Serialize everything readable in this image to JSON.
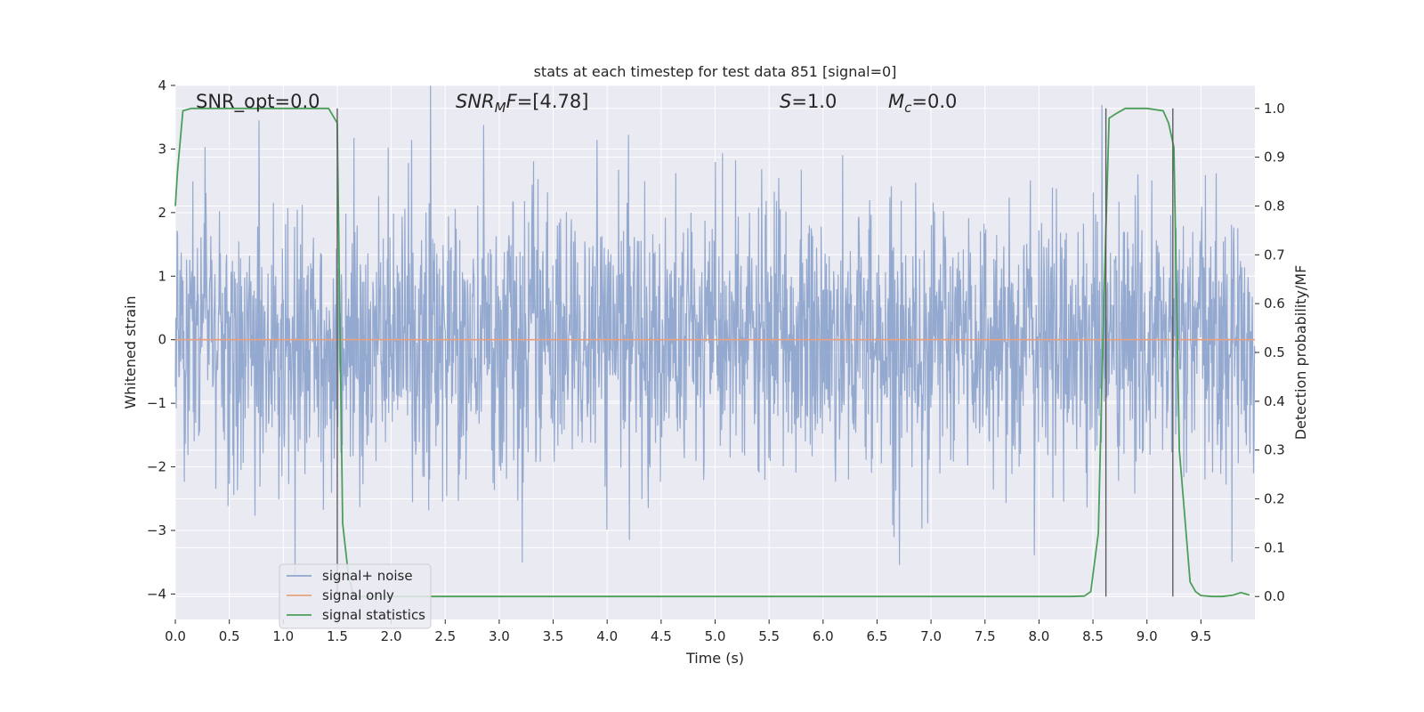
{
  "chart_data": {
    "type": "line",
    "title": "stats at each timestep for test data 851 [signal=0]",
    "xlabel": "Time (s)",
    "ylabel_left": "Whitened strain",
    "ylabel_right": "Detection probability/MF",
    "xlim": [
      0.0,
      10.0
    ],
    "ylim_left": [
      -4.4,
      4.0
    ],
    "ylim_right": [
      -0.047,
      1.047
    ],
    "x_ticks": [
      "0.0",
      "0.5",
      "1.0",
      "1.5",
      "2.0",
      "2.5",
      "3.0",
      "3.5",
      "4.0",
      "4.5",
      "5.0",
      "5.5",
      "6.0",
      "6.5",
      "7.0",
      "7.5",
      "8.0",
      "8.5",
      "9.0",
      "9.5"
    ],
    "y_ticks_left": [
      "−4",
      "−3",
      "−2",
      "−1",
      "0",
      "1",
      "2",
      "3",
      "4"
    ],
    "y_ticks_right": [
      "0.0",
      "0.1",
      "0.2",
      "0.3",
      "0.4",
      "0.5",
      "0.6",
      "0.7",
      "0.8",
      "0.9",
      "1.0"
    ],
    "grid": true,
    "legend_position": "lower-left",
    "annotations": {
      "snr_opt": "SNR_opt=0.0",
      "snr_mf_var": "SNR",
      "snr_mf_sub": "M",
      "snr_mf_var2": "F",
      "snr_mf_value": "=[4.78]",
      "s_var": "S",
      "s_value": "=1.0",
      "mc_var": "M",
      "mc_sub": "c",
      "mc_value": "=0.0"
    },
    "series": [
      {
        "name": "signal+ noise",
        "color": "#8fa5cc",
        "axis": "left",
        "description_values": "white noise, std approx 1.0 strain, sampled across 0–10 s"
      },
      {
        "name": "signal only",
        "color": "#e8a07f",
        "axis": "left",
        "x": [
          0.0,
          10.0
        ],
        "y": [
          0.0,
          0.0
        ]
      },
      {
        "name": "signal statistics",
        "color": "#4c9f5a",
        "axis": "right",
        "x": [
          0.0,
          0.02,
          0.07,
          0.15,
          0.5,
          1.0,
          1.42,
          1.5,
          1.55,
          1.6,
          1.65,
          2.0,
          3.0,
          4.0,
          5.0,
          6.0,
          7.0,
          8.0,
          8.3,
          8.42,
          8.48,
          8.55,
          8.6,
          8.65,
          8.72,
          8.8,
          8.9,
          9.0,
          9.15,
          9.2,
          9.25,
          9.3,
          9.4,
          9.45,
          9.5,
          9.6,
          9.7,
          9.8,
          9.87,
          9.95
        ],
        "y": [
          0.8,
          0.87,
          0.995,
          1.0,
          1.0,
          1.0,
          1.0,
          0.97,
          0.15,
          0.05,
          0.0,
          0.0,
          0.0,
          0.0,
          0.0,
          0.0,
          0.0,
          0.0,
          0.0,
          0.001,
          0.01,
          0.13,
          0.6,
          0.98,
          0.99,
          1.0,
          1.0,
          1.0,
          0.995,
          0.97,
          0.92,
          0.3,
          0.03,
          0.01,
          0.002,
          0.0,
          0.0,
          0.003,
          0.008,
          0.003
        ]
      }
    ],
    "vertical_markers_x": [
      1.5,
      8.62,
      9.24
    ],
    "legend": [
      "signal+ noise",
      "signal only",
      "signal statistics"
    ]
  }
}
